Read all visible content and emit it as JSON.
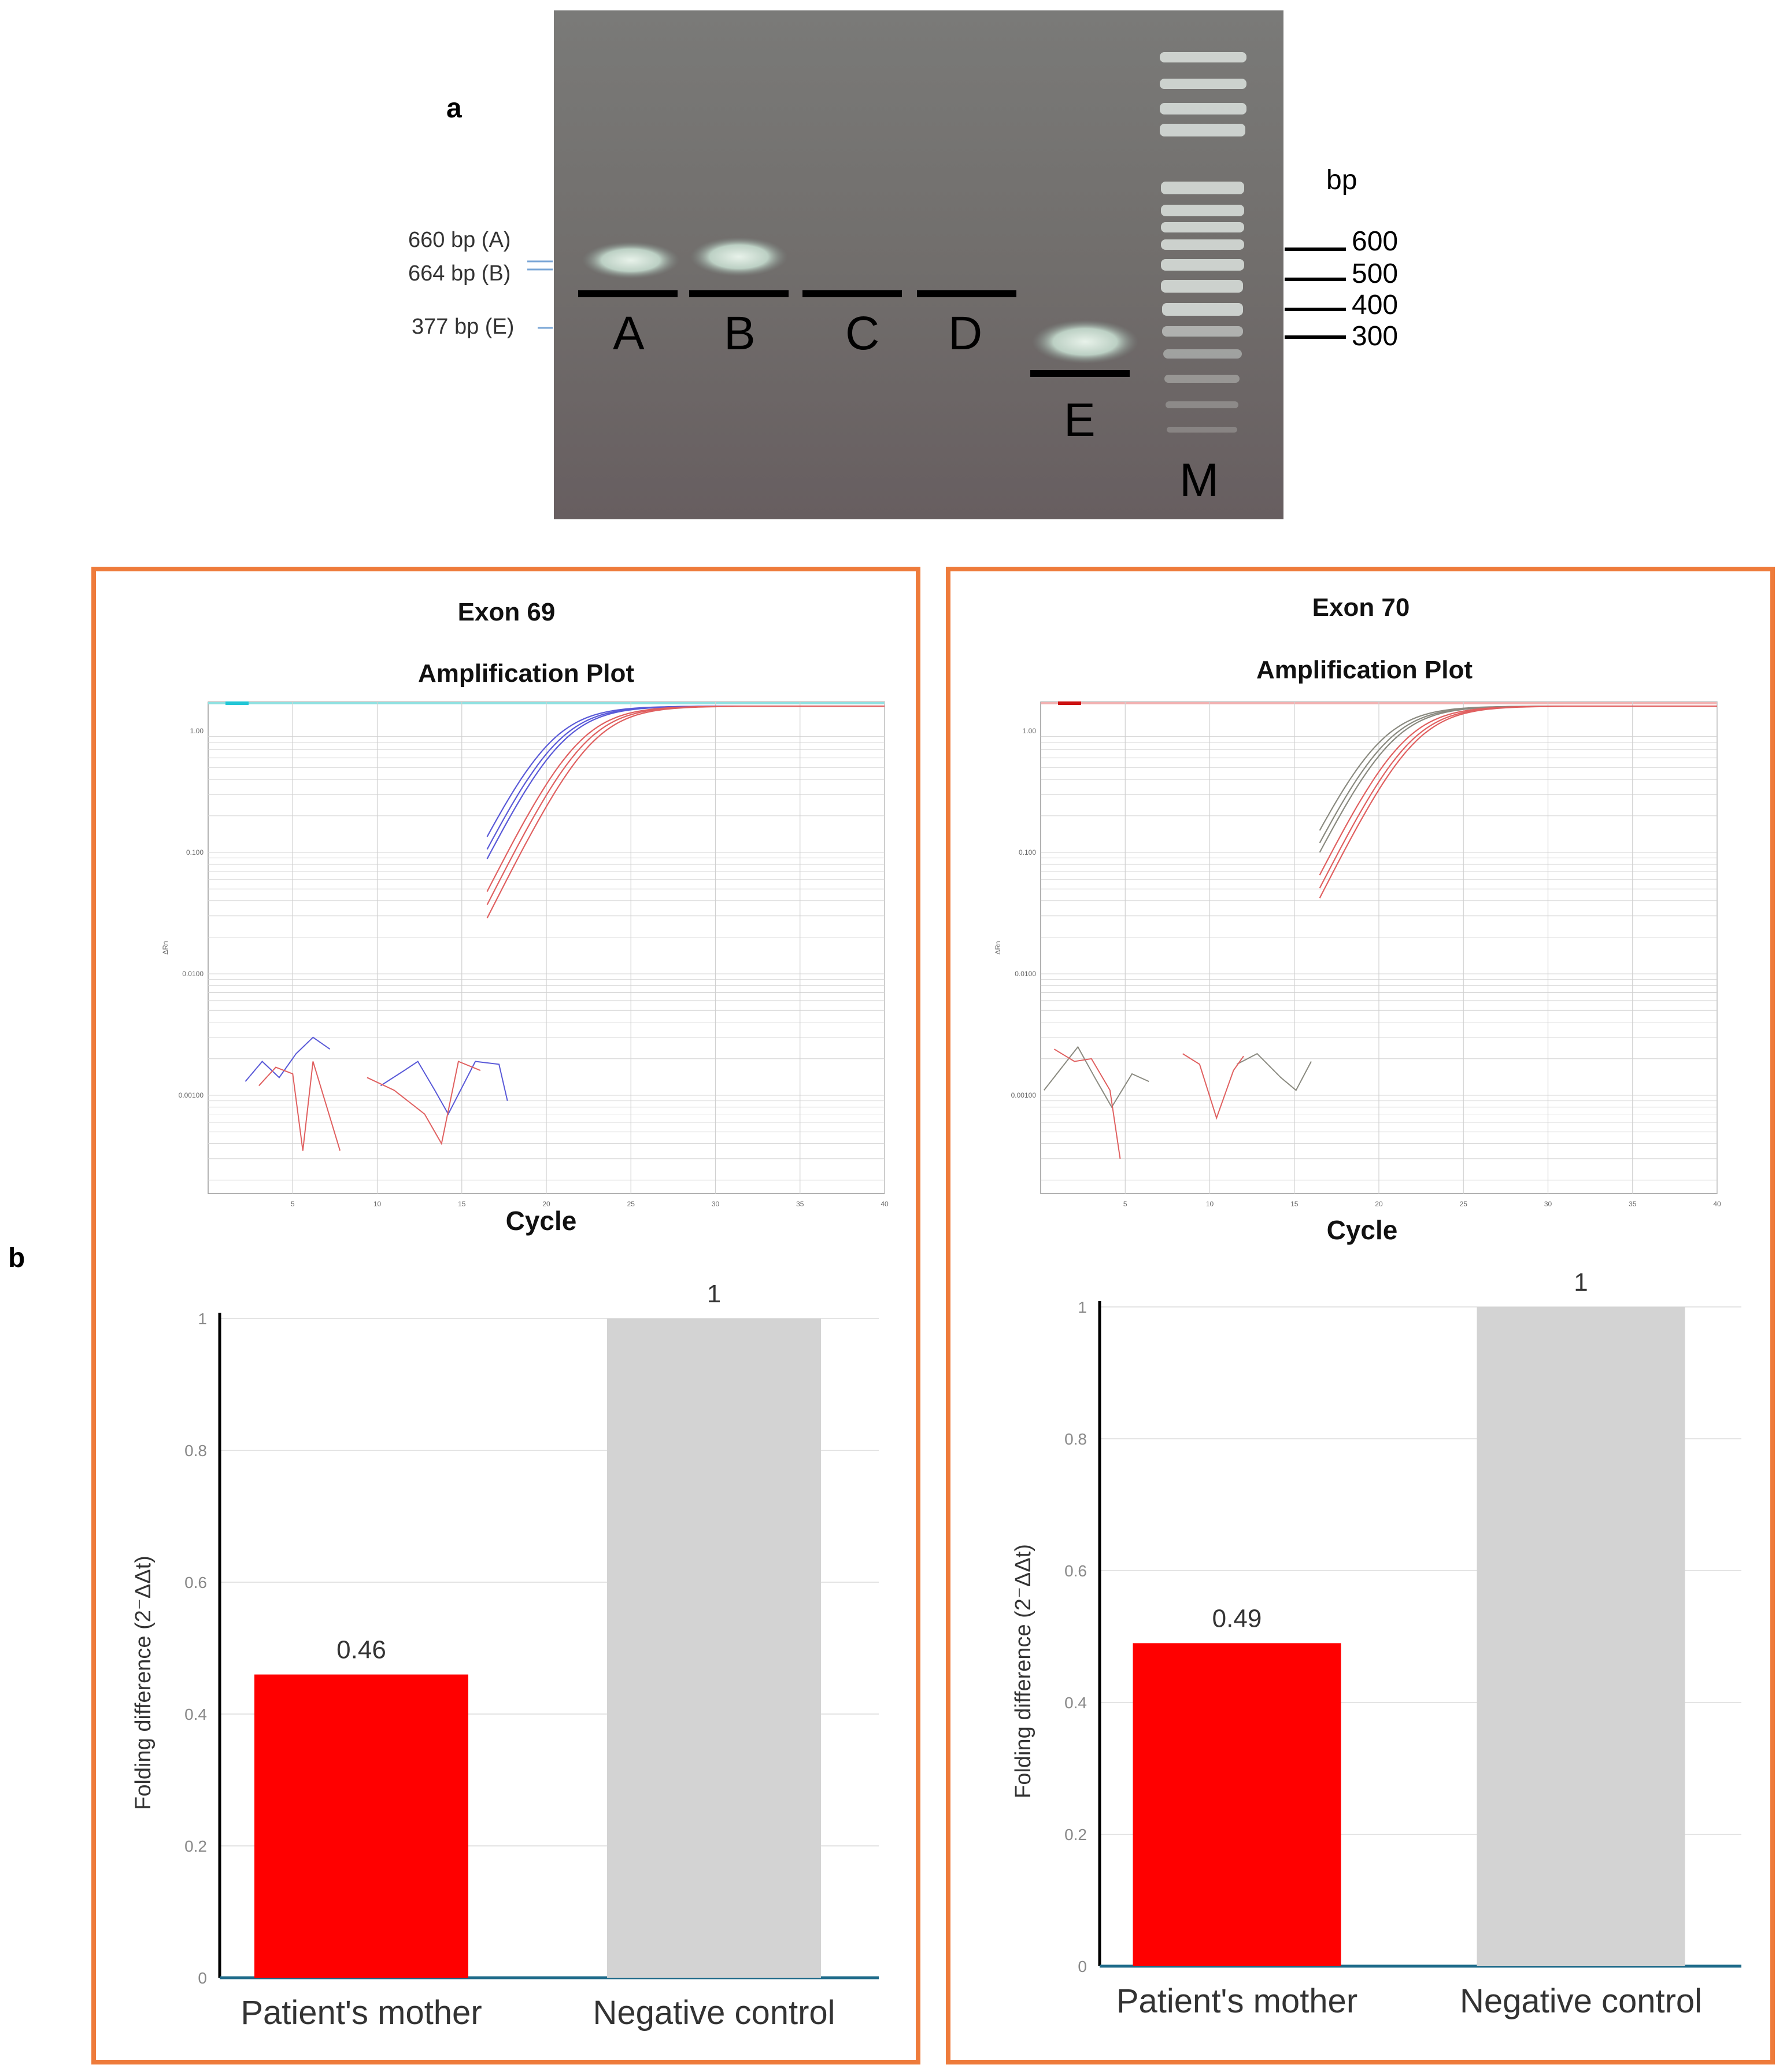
{
  "panel_a": {
    "label": "a",
    "bp_header": "bp",
    "ladder_marks": [
      "600",
      "500",
      "400",
      "300"
    ],
    "band_annotations": [
      "660 bp (A)",
      "664 bp (B)",
      "377 bp (E)"
    ],
    "lanes": [
      "A",
      "B",
      "C",
      "D",
      "E",
      "M"
    ]
  },
  "panel_b": {
    "label": "b"
  },
  "chart_data": [
    {
      "type": "line",
      "panel": "Exon 69",
      "title": "Amplification Plot",
      "xlabel": "Cycle",
      "ylabel": "ΔRn",
      "x_ticks": [
        "5",
        "10",
        "15",
        "20",
        "25",
        "30",
        "35",
        "40"
      ],
      "y_ticks": [
        "1.00",
        "0.100",
        "0.0100",
        "0.00100"
      ],
      "xlim": [
        0,
        40
      ],
      "series_colors": [
        "#5a5ad8",
        "#e06060"
      ]
    },
    {
      "type": "bar",
      "panel": "Exon 69",
      "ylabel": "Folding difference (2⁻ΔΔt)",
      "categories": [
        "Patient's mother",
        "Negative control"
      ],
      "values": [
        0.46,
        1
      ],
      "value_labels": [
        "0.46",
        "1"
      ],
      "y_ticks": [
        "0",
        "0.2",
        "0.4",
        "0.6",
        "0.8",
        "1"
      ],
      "ylim": [
        0,
        1
      ],
      "colors": [
        "#ff0000",
        "#d3d3d3"
      ]
    },
    {
      "type": "line",
      "panel": "Exon 70",
      "title": "Amplification Plot",
      "xlabel": "Cycle",
      "ylabel": "ΔRn",
      "x_ticks": [
        "5",
        "10",
        "15",
        "20",
        "25",
        "30",
        "35",
        "40"
      ],
      "y_ticks": [
        "1.00",
        "0.100",
        "0.0100",
        "0.00100"
      ],
      "xlim": [
        0,
        40
      ],
      "series_colors": [
        "#8a8a80",
        "#e06060"
      ]
    },
    {
      "type": "bar",
      "panel": "Exon 70",
      "ylabel": "Folding difference (2⁻ΔΔt)",
      "categories": [
        "Patient's mother",
        "Negative control"
      ],
      "values": [
        0.49,
        1
      ],
      "value_labels": [
        "0.49",
        "1"
      ],
      "y_ticks": [
        "0",
        "0.2",
        "0.4",
        "0.6",
        "0.8",
        "1"
      ],
      "ylim": [
        0,
        1
      ],
      "colors": [
        "#ff0000",
        "#d3d3d3"
      ]
    }
  ]
}
